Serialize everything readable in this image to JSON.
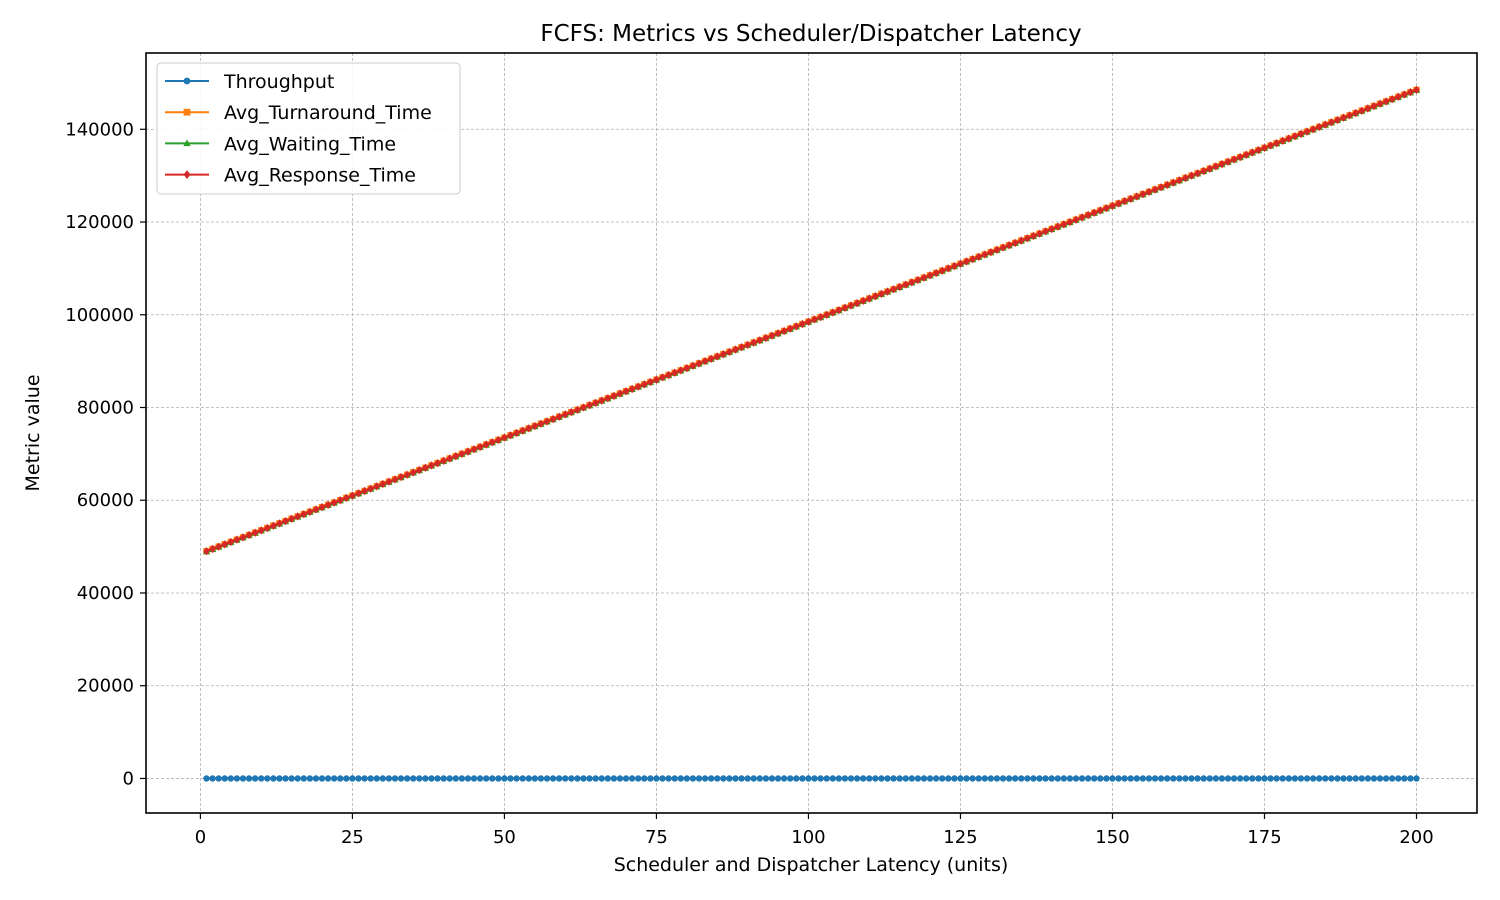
{
  "chart_data": {
    "type": "line",
    "title": "FCFS: Metrics vs Scheduler/Dispatcher Latency",
    "xlabel": "Scheduler and Dispatcher Latency (units)",
    "ylabel": "Metric value",
    "x_range": [
      1,
      200
    ],
    "xlim": [
      -8.95,
      209.95
    ],
    "ylim": [
      -7450,
      156450
    ],
    "xticks": [
      0,
      25,
      50,
      75,
      100,
      125,
      150,
      175,
      200
    ],
    "yticks": [
      0,
      20000,
      40000,
      60000,
      80000,
      100000,
      120000,
      140000
    ],
    "grid": true,
    "legend_position": "top-left",
    "series": [
      {
        "name": "Throughput",
        "color": "#1f77b4",
        "marker": "circle",
        "start": 0,
        "end": 0
      },
      {
        "name": "Avg_Turnaround_Time",
        "color": "#ff7f0e",
        "marker": "square",
        "start": 49000,
        "end": 148500
      },
      {
        "name": "Avg_Waiting_Time",
        "color": "#2ca02c",
        "marker": "triangle",
        "start": 48900,
        "end": 148400
      },
      {
        "name": "Avg_Response_Time",
        "color": "#d62728",
        "marker": "diamond",
        "start": 49000,
        "end": 148500
      }
    ]
  }
}
